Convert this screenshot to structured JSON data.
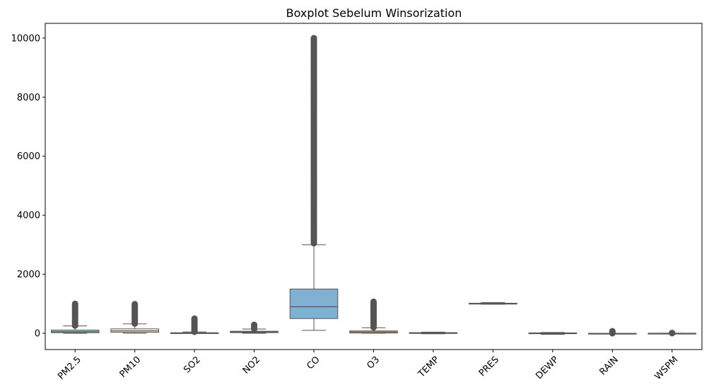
{
  "chart_data": {
    "type": "boxplot",
    "title": "Boxplot Sebelum Winsorization",
    "xlabel": "",
    "ylabel": "",
    "ylim": [
      -550,
      10500
    ],
    "yticks": [
      0,
      2000,
      4000,
      6000,
      8000,
      10000
    ],
    "ytick_labels": [
      "0",
      "2000",
      "4000",
      "6000",
      "8000",
      "10000"
    ],
    "grid": false,
    "x_tick_rotation_deg": 45,
    "categories": [
      "PM2.5",
      "PM10",
      "SO2",
      "NO2",
      "CO",
      "O3",
      "TEMP",
      "PRES",
      "DEWP",
      "RAIN",
      "WSPM"
    ],
    "colors": [
      "#8dd3c7",
      "#ffffb3",
      "#bebada",
      "#fb8072",
      "#80b1d3",
      "#fdb462",
      "#b3de69",
      "#fccde5",
      "#d9d9d9",
      "#bc80bd",
      "#ccebc5"
    ],
    "edge_color": "#555555",
    "boxes": [
      {
        "name": "PM2.5",
        "whislo": 2,
        "q1": 20,
        "median": 55,
        "q3": 110,
        "whishi": 250,
        "fliers_from": 260,
        "fliers_to": 1000
      },
      {
        "name": "PM10",
        "whislo": 2,
        "q1": 36,
        "median": 82,
        "q3": 150,
        "whishi": 320,
        "fliers_from": 330,
        "fliers_to": 990
      },
      {
        "name": "SO2",
        "whislo": 0.3,
        "q1": 3,
        "median": 8,
        "q3": 20,
        "whishi": 45,
        "fliers_from": 50,
        "fliers_to": 500
      },
      {
        "name": "NO2",
        "whislo": 2,
        "q1": 23,
        "median": 45,
        "q3": 70,
        "whishi": 145,
        "fliers_from": 150,
        "fliers_to": 290
      },
      {
        "name": "CO",
        "whislo": 100,
        "q1": 500,
        "median": 900,
        "q3": 1500,
        "whishi": 3000,
        "fliers_from": 3050,
        "fliers_to": 10000
      },
      {
        "name": "O3",
        "whislo": 0.2,
        "q1": 10,
        "median": 45,
        "q3": 80,
        "whishi": 190,
        "fliers_from": 200,
        "fliers_to": 1070
      },
      {
        "name": "TEMP",
        "whislo": -17,
        "q1": 3,
        "median": 14,
        "q3": 23,
        "whishi": 41,
        "fliers_from": null,
        "fliers_to": null
      },
      {
        "name": "PRES",
        "whislo": 985,
        "q1": 1002,
        "median": 1010,
        "q3": 1019,
        "whishi": 1040,
        "fliers_from": null,
        "fliers_to": null
      },
      {
        "name": "DEWP",
        "whislo": -36,
        "q1": -9,
        "median": 3,
        "q3": 15,
        "whishi": 28,
        "fliers_from": null,
        "fliers_to": null
      },
      {
        "name": "RAIN",
        "whislo": 0,
        "q1": 0,
        "median": 0,
        "q3": 0,
        "whishi": 0,
        "fliers_from": 1,
        "fliers_to": 72
      },
      {
        "name": "WSPM",
        "whislo": 0,
        "q1": 0.9,
        "median": 1.4,
        "q3": 2.2,
        "whishi": 4.1,
        "fliers_from": 4.2,
        "fliers_to": 13
      }
    ]
  }
}
